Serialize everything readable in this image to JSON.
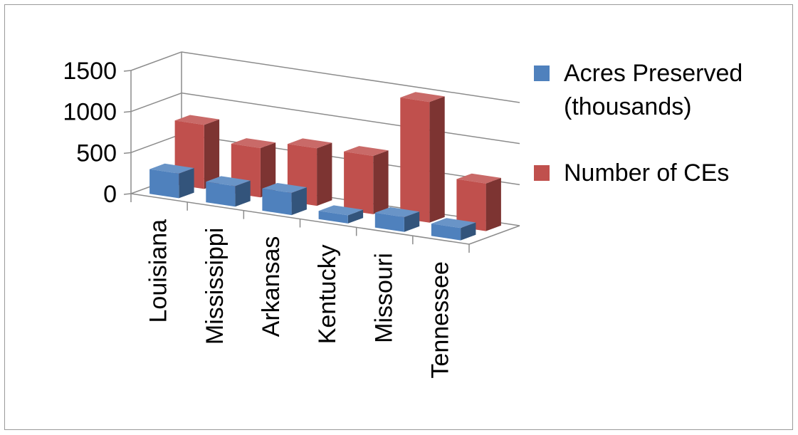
{
  "chart_data": {
    "type": "bar",
    "style": "3d-clustered-column",
    "categories": [
      "Louisiana",
      "Mississippi",
      "Arkansas",
      "Kentucky",
      "Missouri",
      "Tennessee"
    ],
    "series": [
      {
        "name": "Acres Preserved (thousands)",
        "legend_lines": [
          "Acres Preserved",
          "(thousands)"
        ],
        "color": "#4f81bd",
        "values": [
          300,
          250,
          270,
          100,
          180,
          150
        ]
      },
      {
        "name": "Number of CEs",
        "legend_lines": [
          "Number of CEs"
        ],
        "color": "#c0504d",
        "values": [
          780,
          600,
          700,
          710,
          1470,
          580
        ]
      }
    ],
    "yticks": [
      0,
      500,
      1000,
      1500
    ],
    "ylim": [
      0,
      1500
    ],
    "grid": true,
    "legend_position": "right",
    "title": "",
    "xlabel": "",
    "ylabel": ""
  }
}
